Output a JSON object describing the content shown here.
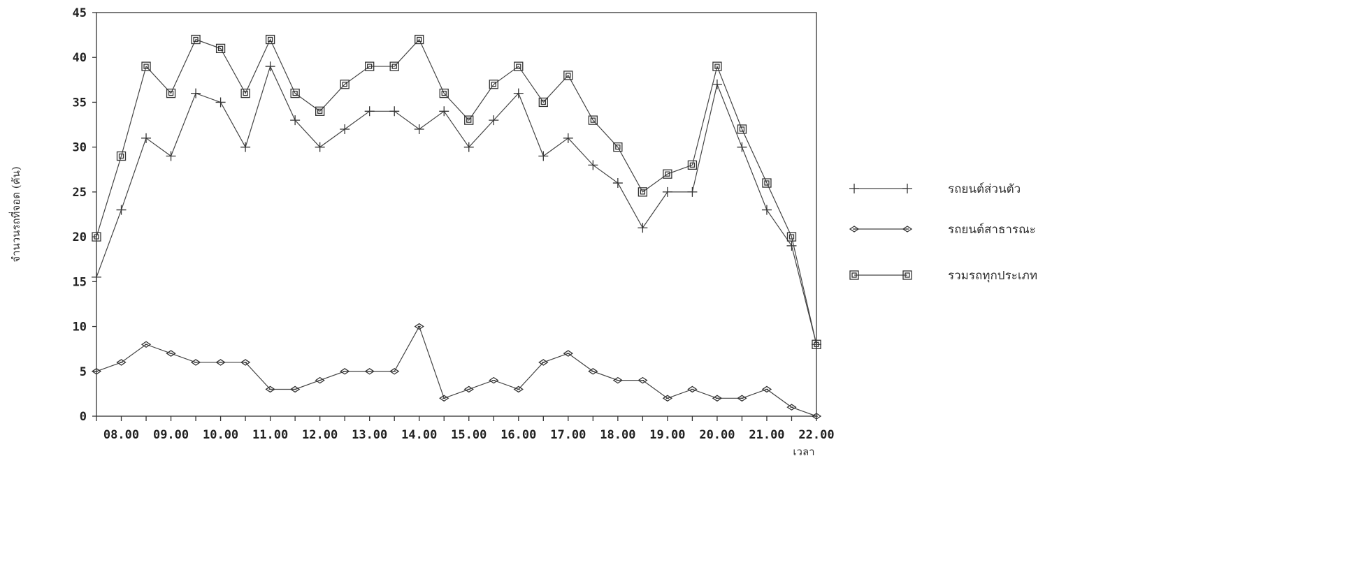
{
  "chart_data": {
    "type": "line",
    "title": "",
    "xlabel": "เวลา",
    "ylabel": "จำนวนรถที่จอด (คัน)",
    "ylim": [
      0,
      45
    ],
    "yticks": [
      0,
      5,
      10,
      15,
      20,
      25,
      30,
      35,
      40,
      45
    ],
    "x": [
      7.5,
      8.0,
      8.5,
      9.0,
      9.5,
      10.0,
      10.5,
      11.0,
      11.5,
      12.0,
      12.5,
      13.0,
      13.5,
      14.0,
      14.5,
      15.0,
      15.5,
      16.0,
      16.5,
      17.0,
      17.5,
      18.0,
      18.5,
      19.0,
      19.5,
      20.0,
      20.5,
      21.0,
      21.5,
      22.0
    ],
    "xlim": [
      7.5,
      22.0
    ],
    "xticks": [
      {
        "value": 8,
        "label": "08.00"
      },
      {
        "value": 9,
        "label": "09.00"
      },
      {
        "value": 10,
        "label": "10.00"
      },
      {
        "value": 11,
        "label": "11.00"
      },
      {
        "value": 12,
        "label": "12.00"
      },
      {
        "value": 13,
        "label": "13.00"
      },
      {
        "value": 14,
        "label": "14.00"
      },
      {
        "value": 15,
        "label": "15.00"
      },
      {
        "value": 16,
        "label": "16.00"
      },
      {
        "value": 17,
        "label": "17.00"
      },
      {
        "value": 18,
        "label": "18.00"
      },
      {
        "value": 19,
        "label": "19.00"
      },
      {
        "value": 20,
        "label": "20.00"
      },
      {
        "value": 21,
        "label": "21.00"
      },
      {
        "value": 22,
        "label": "22.00"
      }
    ],
    "legend_position": "right",
    "grid": false,
    "series": [
      {
        "name": "รถยนต์ส่วนตัว",
        "marker": "plus",
        "values": [
          15.5,
          23,
          31,
          29,
          36,
          35,
          30,
          39,
          33,
          30,
          32,
          34,
          34,
          32,
          34,
          30,
          33,
          36,
          29,
          31,
          28,
          26,
          21,
          25,
          25,
          37,
          30,
          23,
          19,
          8
        ]
      },
      {
        "name": "รถยนต์สาธารณะ",
        "marker": "diamond",
        "values": [
          5,
          6,
          8,
          7,
          6,
          6,
          6,
          3,
          3,
          4,
          5,
          5,
          5,
          10,
          2,
          3,
          4,
          3,
          6,
          7,
          5,
          4,
          4,
          2,
          3,
          2,
          2,
          3,
          1,
          0
        ]
      },
      {
        "name": "รวมรถทุกประเภท",
        "marker": "square",
        "values": [
          20,
          29,
          39,
          36,
          42,
          41,
          36,
          42,
          36,
          34,
          37,
          39,
          39,
          42,
          36,
          33,
          37,
          39,
          35,
          38,
          33,
          30,
          25,
          27,
          28,
          39,
          32,
          26,
          20,
          8
        ]
      }
    ]
  }
}
